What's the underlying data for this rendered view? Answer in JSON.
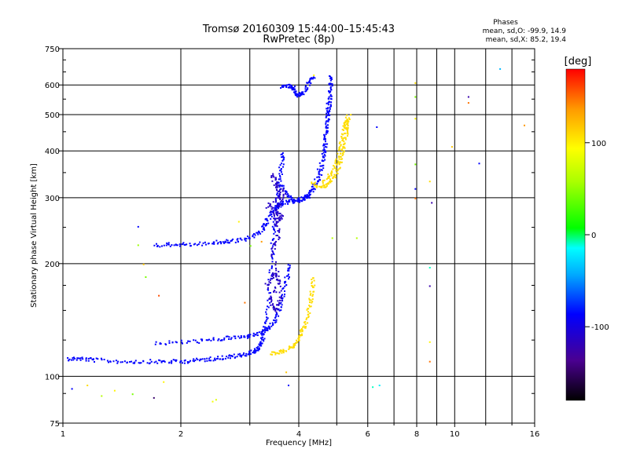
{
  "chart_data": {
    "type": "scatter",
    "title": "Tromsø 20160309 15:44:00–15:45:43",
    "subtitle": "RwPretec (8p)",
    "xlabel": "Frequency [MHz]",
    "ylabel": "Stationary phase Virtual Height [km]",
    "x_scale": "log",
    "y_scale": "log",
    "xlim": [
      1,
      16
    ],
    "ylim": [
      75,
      750
    ],
    "x_ticks": [
      1,
      2,
      4,
      6,
      8,
      10,
      16
    ],
    "x_tick_labels": [
      "1",
      "2",
      "4",
      "6",
      "8",
      "10",
      "16"
    ],
    "x_minor_ticks": [
      3,
      5,
      7,
      9,
      12,
      14
    ],
    "y_ticks": [
      75,
      100,
      200,
      300,
      400,
      500,
      600,
      750
    ],
    "y_tick_labels": [
      "75",
      "100",
      "200",
      "300",
      "400",
      "500",
      "600",
      "750"
    ],
    "y_minor_ticks": [
      90,
      125,
      150,
      175,
      250,
      350,
      450,
      550,
      650,
      700
    ],
    "grid": true,
    "stats": {
      "heading": "Phases",
      "line_o": "mean, sd,O: -99.9, 14.9",
      "line_x": "mean, sd,X:  85.2, 19.4"
    },
    "colorbar": {
      "label": "[deg]",
      "range": [
        -180,
        180
      ],
      "ticks": [
        100,
        0,
        -100
      ],
      "tick_labels": [
        "100",
        "0",
        "-100"
      ]
    },
    "traces": [
      {
        "mode": "O",
        "phase": -100,
        "points": [
          [
            1.02,
            112
          ],
          [
            1.1,
            112
          ],
          [
            1.2,
            111
          ],
          [
            1.4,
            110
          ],
          [
            1.6,
            110
          ],
          [
            1.8,
            110
          ],
          [
            2.0,
            110
          ],
          [
            2.2,
            111
          ],
          [
            2.4,
            112
          ],
          [
            2.6,
            113
          ],
          [
            2.8,
            114
          ],
          [
            3.0,
            116
          ],
          [
            3.1,
            118
          ],
          [
            3.2,
            122
          ],
          [
            3.25,
            130
          ],
          [
            3.3,
            145
          ],
          [
            3.35,
            175
          ],
          [
            3.4,
            210
          ],
          [
            3.45,
            250
          ],
          [
            3.5,
            290
          ],
          [
            3.55,
            330
          ],
          [
            3.6,
            370
          ],
          [
            3.62,
            400
          ]
        ]
      },
      {
        "mode": "O",
        "phase": -100,
        "points": [
          [
            1.7,
            123
          ],
          [
            2.0,
            124
          ],
          [
            2.3,
            125
          ],
          [
            2.6,
            127
          ],
          [
            2.9,
            128
          ],
          [
            3.1,
            130
          ],
          [
            3.3,
            133
          ],
          [
            3.45,
            140
          ],
          [
            3.55,
            152
          ],
          [
            3.65,
            168
          ],
          [
            3.72,
            185
          ],
          [
            3.75,
            200
          ]
        ]
      },
      {
        "mode": "O",
        "phase": -100,
        "points": [
          [
            1.7,
            225
          ],
          [
            1.9,
            226
          ],
          [
            2.1,
            226
          ],
          [
            2.4,
            228
          ],
          [
            2.6,
            230
          ],
          [
            2.8,
            232
          ],
          [
            3.0,
            236
          ],
          [
            3.2,
            246
          ],
          [
            3.3,
            260
          ],
          [
            3.4,
            275
          ],
          [
            3.5,
            285
          ],
          [
            3.6,
            290
          ],
          [
            3.8,
            294
          ],
          [
            4.0,
            297
          ],
          [
            4.2,
            305
          ],
          [
            4.4,
            330
          ],
          [
            4.6,
            400
          ],
          [
            4.7,
            480
          ],
          [
            4.75,
            540
          ]
        ]
      },
      {
        "mode": "O",
        "phase": -100,
        "points": [
          [
            3.55,
            330
          ],
          [
            3.7,
            310
          ],
          [
            3.9,
            294
          ],
          [
            4.1,
            298
          ],
          [
            4.3,
            310
          ],
          [
            4.5,
            340
          ],
          [
            4.6,
            380
          ],
          [
            4.65,
            420
          ],
          [
            4.7,
            470
          ],
          [
            4.75,
            520
          ],
          [
            4.78,
            560
          ],
          [
            4.8,
            600
          ],
          [
            4.82,
            640
          ]
        ]
      },
      {
        "mode": "O",
        "phase": -100,
        "points": [
          [
            3.6,
            595
          ],
          [
            3.75,
            600
          ],
          [
            3.85,
            595
          ],
          [
            3.9,
            575
          ],
          [
            4.0,
            565
          ],
          [
            4.1,
            575
          ],
          [
            4.25,
            615
          ],
          [
            4.35,
            635
          ]
        ]
      },
      {
        "mode": "O",
        "phase": -120,
        "points": [
          [
            3.3,
            175
          ],
          [
            3.45,
            190
          ],
          [
            3.55,
            180
          ],
          [
            3.35,
            160
          ],
          [
            3.5,
            150
          ],
          [
            3.6,
            165
          ],
          [
            3.4,
            215
          ],
          [
            3.55,
            240
          ],
          [
            3.45,
            270
          ],
          [
            3.6,
            300
          ],
          [
            3.5,
            320
          ],
          [
            3.4,
            345
          ],
          [
            3.65,
            310
          ],
          [
            3.3,
            285
          ],
          [
            3.6,
            270
          ],
          [
            3.5,
            260
          ]
        ]
      },
      {
        "mode": "X",
        "phase": 110,
        "points": [
          [
            3.4,
            116
          ],
          [
            3.6,
            117
          ],
          [
            3.8,
            120
          ],
          [
            3.95,
            125
          ],
          [
            4.05,
            132
          ],
          [
            4.15,
            140
          ],
          [
            4.25,
            155
          ],
          [
            4.3,
            170
          ],
          [
            4.35,
            185
          ]
        ]
      },
      {
        "mode": "X",
        "phase": 110,
        "points": [
          [
            4.3,
            330
          ],
          [
            4.5,
            322
          ],
          [
            4.7,
            325
          ],
          [
            4.9,
            340
          ],
          [
            5.05,
            370
          ],
          [
            5.15,
            400
          ],
          [
            5.25,
            440
          ],
          [
            5.3,
            470
          ],
          [
            5.35,
            500
          ]
        ]
      },
      {
        "mode": "X",
        "phase": 110,
        "points": [
          [
            4.6,
            330
          ],
          [
            4.85,
            350
          ],
          [
            5.0,
            380
          ],
          [
            5.1,
            420
          ],
          [
            5.2,
            460
          ],
          [
            5.25,
            490
          ]
        ]
      }
    ],
    "scatter_points": [
      {
        "x": 1.05,
        "y": 93,
        "phase": -100
      },
      {
        "x": 1.15,
        "y": 95,
        "phase": 110
      },
      {
        "x": 1.25,
        "y": 89,
        "phase": 60
      },
      {
        "x": 1.35,
        "y": 92,
        "phase": 100
      },
      {
        "x": 1.5,
        "y": 90,
        "phase": 40
      },
      {
        "x": 1.55,
        "y": 252,
        "phase": -100
      },
      {
        "x": 1.6,
        "y": 200,
        "phase": 120
      },
      {
        "x": 1.62,
        "y": 185,
        "phase": 40
      },
      {
        "x": 1.55,
        "y": 225,
        "phase": 50
      },
      {
        "x": 1.7,
        "y": 88,
        "phase": -150
      },
      {
        "x": 1.75,
        "y": 165,
        "phase": 160
      },
      {
        "x": 1.8,
        "y": 97,
        "phase": 100
      },
      {
        "x": 2.4,
        "y": 86,
        "phase": 90
      },
      {
        "x": 2.45,
        "y": 87,
        "phase": 80
      },
      {
        "x": 2.8,
        "y": 260,
        "phase": 100
      },
      {
        "x": 2.9,
        "y": 158,
        "phase": 150
      },
      {
        "x": 3.0,
        "y": 224,
        "phase": 40
      },
      {
        "x": 3.2,
        "y": 230,
        "phase": 140
      },
      {
        "x": 3.7,
        "y": 103,
        "phase": 120
      },
      {
        "x": 3.75,
        "y": 95,
        "phase": -100
      },
      {
        "x": 4.35,
        "y": 640,
        "phase": 100
      },
      {
        "x": 4.85,
        "y": 235,
        "phase": 60
      },
      {
        "x": 5.6,
        "y": 235,
        "phase": 60
      },
      {
        "x": 6.15,
        "y": 94,
        "phase": -10
      },
      {
        "x": 6.4,
        "y": 95,
        "phase": -20
      },
      {
        "x": 6.3,
        "y": 465,
        "phase": -100
      },
      {
        "x": 7.9,
        "y": 610,
        "phase": 110
      },
      {
        "x": 7.9,
        "y": 560,
        "phase": 40
      },
      {
        "x": 7.9,
        "y": 490,
        "phase": 100
      },
      {
        "x": 7.9,
        "y": 370,
        "phase": 40
      },
      {
        "x": 7.9,
        "y": 318,
        "phase": -100
      },
      {
        "x": 7.9,
        "y": 300,
        "phase": 150
      },
      {
        "x": 8.6,
        "y": 333,
        "phase": 110
      },
      {
        "x": 8.7,
        "y": 292,
        "phase": -130
      },
      {
        "x": 8.6,
        "y": 196,
        "phase": -10
      },
      {
        "x": 8.6,
        "y": 175,
        "phase": -130
      },
      {
        "x": 8.6,
        "y": 124,
        "phase": 100
      },
      {
        "x": 8.6,
        "y": 110,
        "phase": 150
      },
      {
        "x": 9.8,
        "y": 412,
        "phase": 120
      },
      {
        "x": 10.8,
        "y": 560,
        "phase": -130
      },
      {
        "x": 10.8,
        "y": 540,
        "phase": 150
      },
      {
        "x": 11.5,
        "y": 372,
        "phase": -100
      },
      {
        "x": 13.0,
        "y": 665,
        "phase": -40
      },
      {
        "x": 15.0,
        "y": 470,
        "phase": 140
      }
    ]
  }
}
